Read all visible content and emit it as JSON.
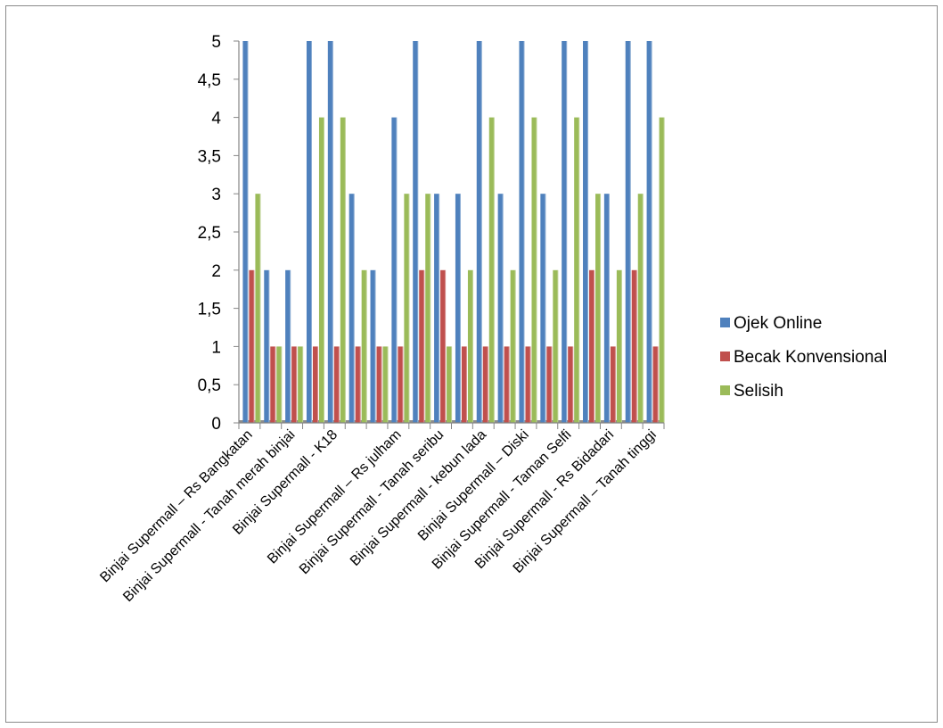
{
  "chart_data": {
    "type": "bar",
    "categories": [
      "Binjai Supermall – Rs Bangkatan",
      "Binjai Supermall - Tanah merah binjai",
      "Binjai Supermall - K18",
      "Binjai Supermall – Rs julham",
      "Binjai Supermall - Tanah seribu",
      "Binjai Supermall - kebun lada",
      "Binjai Supermall – Diski",
      "Binjai Supermall - Taman Selfi",
      "Binjai Supermall - Rs Bidadari",
      "Binjai Supermall – Tanah tinggi"
    ],
    "groups": [
      {
        "category_index": 0,
        "values": [
          5,
          2,
          3
        ]
      },
      {
        "category_index": null,
        "values": [
          2,
          1,
          1
        ]
      },
      {
        "category_index": 1,
        "values": [
          2,
          1,
          1
        ]
      },
      {
        "category_index": null,
        "values": [
          5,
          1,
          4
        ]
      },
      {
        "category_index": 2,
        "values": [
          5,
          1,
          4
        ]
      },
      {
        "category_index": null,
        "values": [
          3,
          1,
          2
        ]
      },
      {
        "category_index": null,
        "values": [
          2,
          1,
          1
        ]
      },
      {
        "category_index": 3,
        "values": [
          4,
          1,
          3
        ]
      },
      {
        "category_index": null,
        "values": [
          5,
          2,
          3
        ]
      },
      {
        "category_index": 4,
        "values": [
          3,
          2,
          1
        ]
      },
      {
        "category_index": null,
        "values": [
          3,
          1,
          2
        ]
      },
      {
        "category_index": 5,
        "values": [
          5,
          1,
          4
        ]
      },
      {
        "category_index": null,
        "values": [
          3,
          1,
          2
        ]
      },
      {
        "category_index": 6,
        "values": [
          5,
          1,
          4
        ]
      },
      {
        "category_index": null,
        "values": [
          3,
          1,
          2
        ]
      },
      {
        "category_index": 7,
        "values": [
          5,
          1,
          4
        ]
      },
      {
        "category_index": null,
        "values": [
          5,
          2,
          3
        ]
      },
      {
        "category_index": 8,
        "values": [
          3,
          1,
          2
        ]
      },
      {
        "category_index": null,
        "values": [
          5,
          2,
          3
        ]
      },
      {
        "category_index": 9,
        "values": [
          5,
          1,
          4
        ]
      }
    ],
    "series": [
      {
        "name": "Ojek Online",
        "color": "#4F81BD"
      },
      {
        "name": "Becak Konvensional",
        "color": "#C0504D"
      },
      {
        "name": "Selisih",
        "color": "#9BBB59"
      }
    ],
    "yticks": [
      "0",
      "0,5",
      "1",
      "1,5",
      "2",
      "2,5",
      "3",
      "3,5",
      "4",
      "4,5",
      "5"
    ],
    "ylim": [
      0,
      5
    ],
    "grid": false,
    "legend_position": "right",
    "title": "",
    "xlabel": "",
    "ylabel": ""
  }
}
